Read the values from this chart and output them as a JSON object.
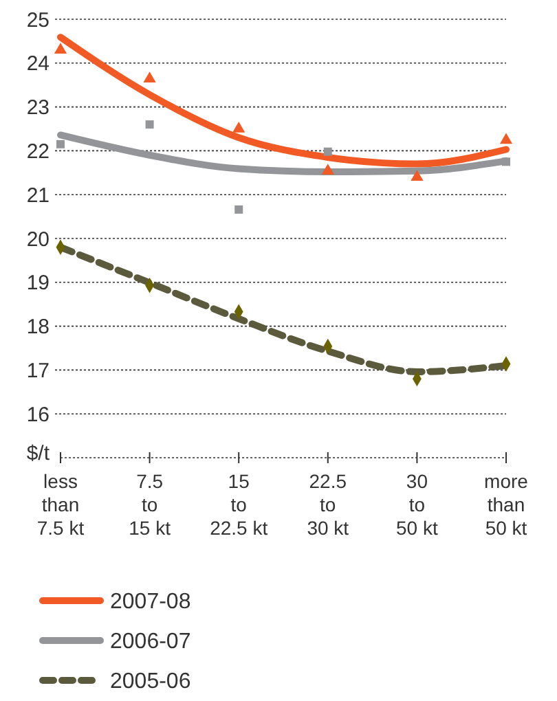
{
  "chart_data": {
    "type": "line",
    "categories": [
      "less than 7.5 kt",
      "7.5 to 15 kt",
      "15 to 22.5 kt",
      "22.5 to 30 kt",
      "30 to 50 kt",
      "more than 50 kt"
    ],
    "ylabel": "$/t",
    "ylim": [
      15,
      25
    ],
    "yticks": [
      16,
      17,
      18,
      19,
      20,
      21,
      22,
      23,
      24,
      25
    ],
    "grid": "y",
    "legend": "bottom",
    "series": [
      {
        "name": "2007-08",
        "color": "#f15a24",
        "marker": "none",
        "line_style": "solid",
        "values": [
          24.59,
          23.28,
          22.3,
          21.85,
          21.7,
          22.03
        ]
      },
      {
        "name": "2006-07",
        "color": "#939598",
        "marker": "none",
        "line_style": "solid",
        "values": [
          22.36,
          21.9,
          21.59,
          21.52,
          21.54,
          21.77
        ]
      },
      {
        "name": "2005-06",
        "color": "#5b5a3c",
        "marker": "none",
        "line_style": "dashed",
        "values": [
          19.8,
          18.99,
          18.17,
          17.43,
          16.96,
          17.1
        ]
      },
      {
        "type": "scatter",
        "color": "#f15a24",
        "marker": "triangle",
        "values": [
          24.3,
          23.64,
          22.5,
          21.54,
          21.4,
          22.24
        ]
      },
      {
        "type": "scatter",
        "color": "#939598",
        "marker": "square",
        "values": [
          22.15,
          22.6,
          20.66,
          21.98,
          null,
          21.75
        ]
      },
      {
        "type": "scatter",
        "color": "#6b6200",
        "marker": "diamond",
        "values": [
          19.8,
          18.93,
          18.33,
          17.54,
          16.8,
          17.14
        ]
      }
    ]
  }
}
